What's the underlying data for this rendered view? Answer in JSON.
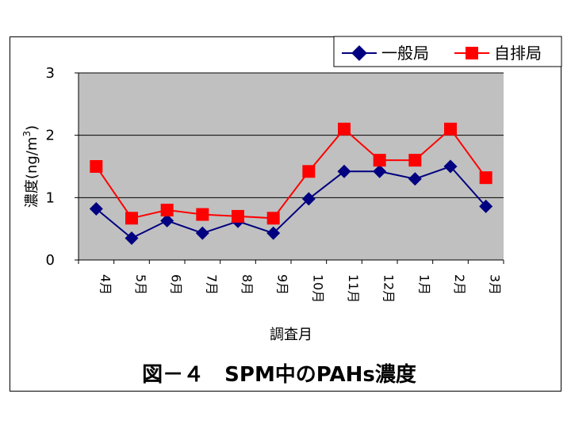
{
  "chart_data": {
    "type": "line",
    "title": "図－４　SPM中のPAHs濃度",
    "xlabel": "調査月",
    "ylabel": "濃度(ng/m3)",
    "ylabel_main": "濃度(ng/m",
    "ylabel_sup": "3",
    "ylabel_close": ")",
    "categories": [
      "4月",
      "5月",
      "6月",
      "7月",
      "8月",
      "9月",
      "10月",
      "11月",
      "12月",
      "1月",
      "2月",
      "3月"
    ],
    "ylim": [
      0,
      3
    ],
    "yticks": [
      "0",
      "1",
      "2",
      "3"
    ],
    "grid": true,
    "legend_position": "top-right",
    "series": [
      {
        "name": "一般局",
        "color": "#000080",
        "marker": "diamond",
        "values": [
          0.82,
          0.35,
          0.63,
          0.43,
          0.62,
          0.43,
          0.98,
          1.42,
          1.42,
          1.3,
          1.5,
          0.86
        ]
      },
      {
        "name": "自排局",
        "color": "#ff0000",
        "marker": "square",
        "values": [
          1.5,
          0.67,
          0.8,
          0.73,
          0.7,
          0.67,
          1.42,
          2.1,
          1.6,
          1.6,
          2.1,
          1.32
        ]
      }
    ]
  }
}
